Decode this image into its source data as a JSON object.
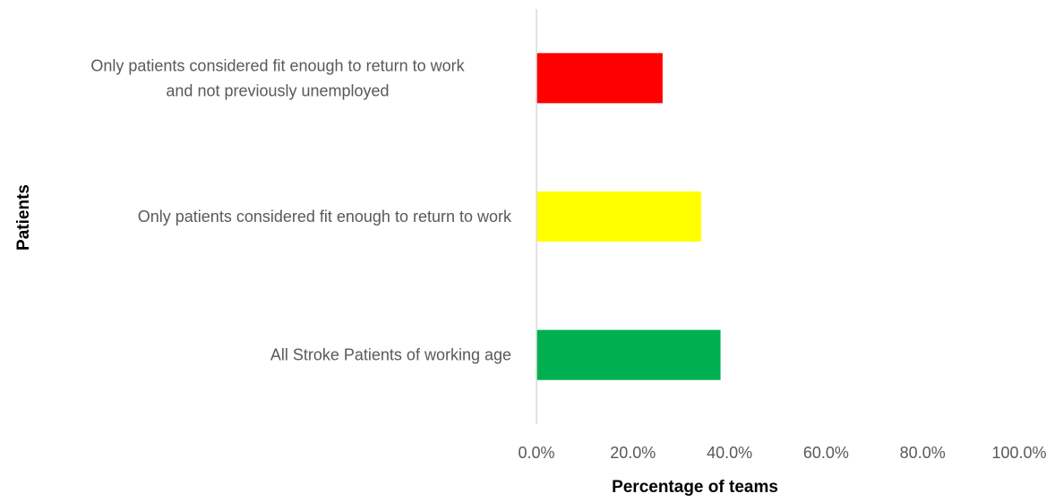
{
  "chart_data": {
    "type": "bar",
    "orientation": "horizontal",
    "categories": [
      [
        "Only patients considered fit enough to return to work",
        "and not previously unemployed"
      ],
      [
        "Only patients considered fit enough to return to work"
      ],
      [
        "All Stroke Patients of working age"
      ]
    ],
    "values": [
      26.0,
      34.0,
      38.0
    ],
    "colors": [
      "#ff0000",
      "#ffff00",
      "#00b050"
    ],
    "xlabel": "Percentage of teams",
    "ylabel": "Patients",
    "xlim": [
      0,
      100
    ],
    "xticks": [
      "0.0%",
      "20.0%",
      "40.0%",
      "60.0%",
      "80.0%",
      "100.0%"
    ],
    "grid": false,
    "legend": "none"
  }
}
